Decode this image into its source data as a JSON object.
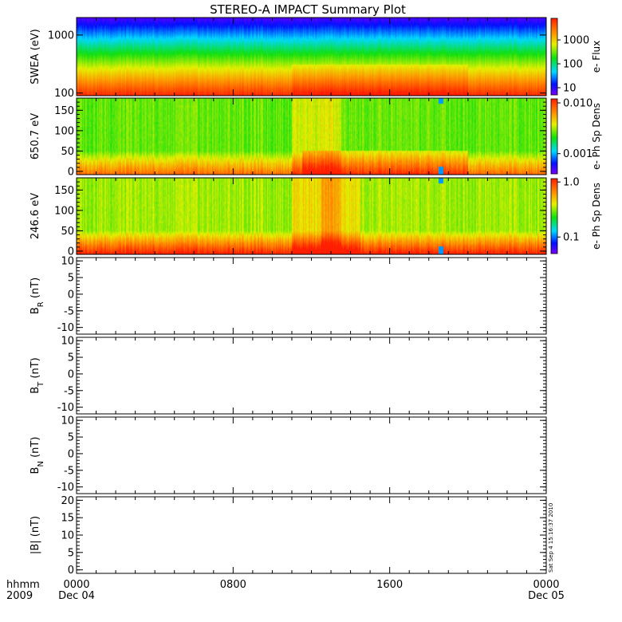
{
  "title": "STEREO-A IMPACT Summary Plot",
  "x_axis": {
    "corner_top": "hhmm",
    "corner_bottom": "2009",
    "ticks": [
      {
        "t": 0,
        "label": "0000",
        "date": "Dec 04"
      },
      {
        "t": 8,
        "label": "0800",
        "date": ""
      },
      {
        "t": 16,
        "label": "1600",
        "date": ""
      },
      {
        "t": 24,
        "label": "0000",
        "date": "Dec 05"
      }
    ],
    "range_hours": [
      0,
      24
    ]
  },
  "timestamp": "Sat Sep  4 15:16:37 2010",
  "chart_data": [
    {
      "type": "heatmap",
      "panel": "swea-flux",
      "ylabel": "SWEA (eV)",
      "yscale": "log",
      "ylim": [
        90,
        2000
      ],
      "yticks": [
        {
          "v": 100,
          "label": "100"
        },
        {
          "v": 1000,
          "label": "1000"
        }
      ],
      "colorbar": {
        "label": "e- Flux",
        "scale": "log",
        "range": [
          5,
          8000
        ],
        "ticks": [
          {
            "v": 10,
            "label": "10"
          },
          {
            "v": 100,
            "label": "100"
          },
          {
            "v": 1000,
            "label": "1000"
          }
        ]
      },
      "description_values": {
        "low_energy_flux": 5000,
        "high_energy_flux": 5
      }
    },
    {
      "type": "heatmap",
      "panel": "pad-650",
      "ylabel": "650.7 eV",
      "yscale": "linear",
      "ylim": [
        -8,
        180
      ],
      "yticks": [
        {
          "v": 0,
          "label": "0"
        },
        {
          "v": 50,
          "label": "50"
        },
        {
          "v": 100,
          "label": "100"
        },
        {
          "v": 150,
          "label": "150"
        }
      ],
      "colorbar": {
        "label": "e- Ph Sp Dens",
        "scale": "log",
        "range": [
          0.0004,
          0.012
        ],
        "ticks": [
          {
            "v": 0.001,
            "label": "0.001"
          },
          {
            "v": 0.01,
            "label": "0.010"
          }
        ]
      }
    },
    {
      "type": "heatmap",
      "panel": "pad-246",
      "ylabel": "246.6 eV",
      "yscale": "linear",
      "ylim": [
        -8,
        180
      ],
      "yticks": [
        {
          "v": 0,
          "label": "0"
        },
        {
          "v": 50,
          "label": "50"
        },
        {
          "v": 100,
          "label": "100"
        },
        {
          "v": 150,
          "label": "150"
        }
      ],
      "colorbar": {
        "label": "e- Ph Sp Dens",
        "scale": "log",
        "range": [
          0.05,
          1.15
        ],
        "ticks": [
          {
            "v": 0.1,
            "label": "0.1"
          },
          {
            "v": 1.0,
            "label": "1.0"
          }
        ]
      }
    },
    {
      "type": "line",
      "panel": "br",
      "ylabel_main": "B",
      "ylabel_sub": "R",
      "ylabel_unit": " (nT)",
      "ylim": [
        -12,
        11
      ],
      "series": [],
      "yticks": [
        {
          "v": -10,
          "label": "-10"
        },
        {
          "v": -5,
          "label": "-5"
        },
        {
          "v": 0,
          "label": "0"
        },
        {
          "v": 5,
          "label": "5"
        },
        {
          "v": 10,
          "label": "10"
        }
      ]
    },
    {
      "type": "line",
      "panel": "bt",
      "ylabel_main": "B",
      "ylabel_sub": "T",
      "ylabel_unit": " (nT)",
      "ylim": [
        -12,
        11
      ],
      "series": [],
      "yticks": [
        {
          "v": -10,
          "label": "-10"
        },
        {
          "v": -5,
          "label": "-5"
        },
        {
          "v": 0,
          "label": "0"
        },
        {
          "v": 5,
          "label": "5"
        },
        {
          "v": 10,
          "label": "10"
        }
      ]
    },
    {
      "type": "line",
      "panel": "bn",
      "ylabel_main": "B",
      "ylabel_sub": "N",
      "ylabel_unit": " (nT)",
      "ylim": [
        -12,
        11
      ],
      "series": [],
      "yticks": [
        {
          "v": -10,
          "label": "-10"
        },
        {
          "v": -5,
          "label": "-5"
        },
        {
          "v": 0,
          "label": "0"
        },
        {
          "v": 5,
          "label": "5"
        },
        {
          "v": 10,
          "label": "10"
        }
      ]
    },
    {
      "type": "line",
      "panel": "bmag",
      "ylabel_main": "|B| (nT)",
      "ylim": [
        -1,
        21
      ],
      "series": [],
      "yticks": [
        {
          "v": 0,
          "label": "0"
        },
        {
          "v": 5,
          "label": "5"
        },
        {
          "v": 10,
          "label": "10"
        },
        {
          "v": 15,
          "label": "15"
        },
        {
          "v": 20,
          "label": "20"
        }
      ]
    }
  ]
}
